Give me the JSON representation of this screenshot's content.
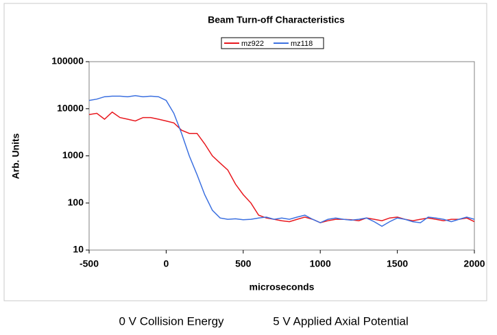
{
  "chart_data": {
    "type": "line",
    "title": "Beam Turn-off Characteristics",
    "xlabel": "microseconds",
    "ylabel": "Arb. Units",
    "x": [
      -500,
      -450,
      -400,
      -350,
      -300,
      -250,
      -200,
      -150,
      -100,
      -50,
      0,
      50,
      100,
      150,
      200,
      250,
      300,
      350,
      400,
      450,
      500,
      550,
      600,
      650,
      700,
      750,
      800,
      850,
      900,
      950,
      1000,
      1050,
      1100,
      1150,
      1200,
      1250,
      1300,
      1350,
      1400,
      1450,
      1500,
      1550,
      1600,
      1650,
      1700,
      1750,
      1800,
      1850,
      1900,
      1950,
      2000
    ],
    "series": [
      {
        "name": "mz922",
        "color": "#e8161c",
        "values": [
          7500,
          8000,
          6000,
          8500,
          6500,
          6000,
          5500,
          6500,
          6500,
          6000,
          5500,
          5000,
          3500,
          3000,
          3000,
          1800,
          1000,
          700,
          500,
          250,
          150,
          100,
          55,
          48,
          45,
          42,
          40,
          45,
          50,
          45,
          38,
          42,
          45,
          45,
          44,
          42,
          48,
          45,
          42,
          48,
          50,
          45,
          42,
          45,
          48,
          45,
          42,
          45,
          45,
          48,
          40
        ]
      },
      {
        "name": "mz118",
        "color": "#3a6fe0",
        "values": [
          15000,
          16000,
          18000,
          18500,
          18500,
          18000,
          19000,
          18000,
          18500,
          18000,
          15000,
          8000,
          3000,
          1000,
          400,
          150,
          70,
          48,
          45,
          46,
          44,
          45,
          48,
          50,
          45,
          48,
          45,
          50,
          55,
          45,
          38,
          45,
          48,
          45,
          43,
          45,
          48,
          40,
          32,
          40,
          48,
          45,
          40,
          38,
          50,
          48,
          45,
          40,
          45,
          50,
          45
        ]
      }
    ],
    "xlim": [
      -500,
      2000
    ],
    "xticks": [
      -500,
      0,
      500,
      1000,
      1500,
      2000
    ],
    "ylim": [
      10,
      100000
    ],
    "yticks": [
      10,
      100,
      1000,
      10000,
      100000
    ],
    "log_y": true,
    "legend": "top"
  },
  "captions": [
    "0 V Collision Energy",
    "5 V Applied Axial Potential"
  ]
}
